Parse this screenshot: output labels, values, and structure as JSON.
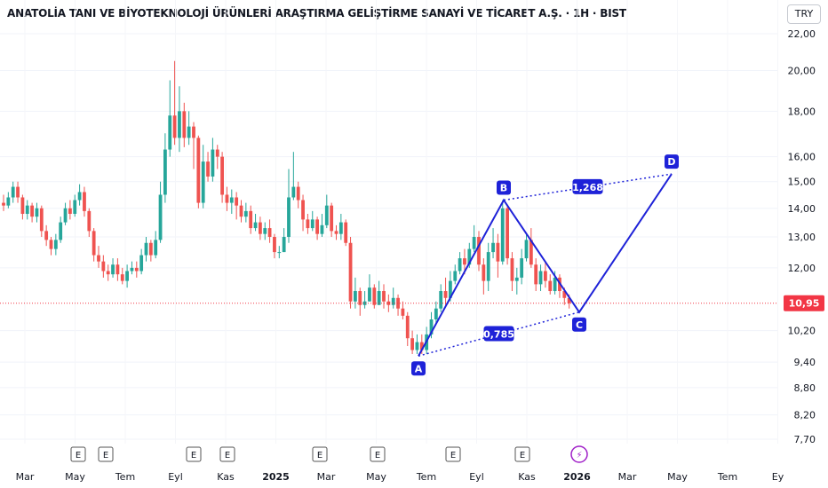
{
  "header": {
    "title": "ANATOLİA TANI VE BİYOTEKNOLOJİ ÜRÜNLERİ ARAŞTIRMA GELİŞTİRME SANAYİ VE TİCARET A.Ş. · 1H · BIST",
    "currency": "TRY"
  },
  "colors": {
    "up": "#26a69a",
    "down": "#ef5350",
    "pattern": "#1e22d8",
    "last_price": "#f23645"
  },
  "chart_data": {
    "type": "candlestick",
    "scale": "log",
    "y_ticks": [
      "22,00",
      "20,00",
      "18,00",
      "16,00",
      "15,00",
      "14,00",
      "13,00",
      "12,00",
      "10,20",
      "9,40",
      "8,80",
      "8,20",
      "7,70"
    ],
    "y_tick_values": [
      22.0,
      20.0,
      18.0,
      16.0,
      15.0,
      14.0,
      13.0,
      12.0,
      10.2,
      9.4,
      8.8,
      8.2,
      7.7
    ],
    "x_ticks": [
      "Mar",
      "May",
      "Tem",
      "Eyl",
      "Kas",
      "2025",
      "Mar",
      "May",
      "Tem",
      "Eyl",
      "Kas",
      "2026",
      "Mar",
      "May",
      "Tem",
      "Ey"
    ],
    "last_price": {
      "value": 10.95,
      "label": "10,95"
    },
    "events": [
      "E",
      "E",
      "E",
      "E",
      "E",
      "E",
      "E",
      "E",
      "⚡"
    ],
    "pattern": {
      "points": [
        {
          "label": "A",
          "value": 9.55
        },
        {
          "label": "B",
          "value": 14.3
        },
        {
          "label": "C",
          "value": 10.7
        },
        {
          "label": "D",
          "value": 15.3
        }
      ],
      "ratios": [
        "0,785",
        "1,268"
      ]
    },
    "candles": [
      [
        14.2,
        14.1,
        14.5,
        13.9
      ],
      [
        14.1,
        14.4,
        14.6,
        14.0
      ],
      [
        14.4,
        14.8,
        15.0,
        14.2
      ],
      [
        14.8,
        14.4,
        15.0,
        14.2
      ],
      [
        14.4,
        13.8,
        14.5,
        13.6
      ],
      [
        13.8,
        14.1,
        14.3,
        13.6
      ],
      [
        14.1,
        13.7,
        14.2,
        13.5
      ],
      [
        13.7,
        14.0,
        14.2,
        13.5
      ],
      [
        14.0,
        13.2,
        14.1,
        13.0
      ],
      [
        13.2,
        12.9,
        13.4,
        12.7
      ],
      [
        12.9,
        12.6,
        13.0,
        12.4
      ],
      [
        12.6,
        12.9,
        13.1,
        12.4
      ],
      [
        12.9,
        13.5,
        13.7,
        12.8
      ],
      [
        13.5,
        14.0,
        14.2,
        13.4
      ],
      [
        14.0,
        13.8,
        14.3,
        13.6
      ],
      [
        13.8,
        14.3,
        14.5,
        13.7
      ],
      [
        14.3,
        14.6,
        14.9,
        14.1
      ],
      [
        14.6,
        13.9,
        14.8,
        13.7
      ],
      [
        13.9,
        13.2,
        14.0,
        13.0
      ],
      [
        13.2,
        12.4,
        13.3,
        12.2
      ],
      [
        12.4,
        12.2,
        12.7,
        12.0
      ],
      [
        12.2,
        11.9,
        12.4,
        11.7
      ],
      [
        11.9,
        11.8,
        12.1,
        11.6
      ],
      [
        11.8,
        12.1,
        12.3,
        11.7
      ],
      [
        12.1,
        11.8,
        12.3,
        11.6
      ],
      [
        11.8,
        11.6,
        12.0,
        11.5
      ],
      [
        11.6,
        11.9,
        12.1,
        11.4
      ],
      [
        11.9,
        12.0,
        12.2,
        11.8
      ],
      [
        12.0,
        11.9,
        12.2,
        11.7
      ],
      [
        11.9,
        12.4,
        12.6,
        11.8
      ],
      [
        12.4,
        12.8,
        13.0,
        12.2
      ],
      [
        12.8,
        12.4,
        12.9,
        12.2
      ],
      [
        12.4,
        12.9,
        13.2,
        12.3
      ],
      [
        12.9,
        14.5,
        15.0,
        12.8
      ],
      [
        14.5,
        16.3,
        17.0,
        14.2
      ],
      [
        16.3,
        17.8,
        19.5,
        16.0
      ],
      [
        17.8,
        16.8,
        20.5,
        16.5
      ],
      [
        16.8,
        18.0,
        19.2,
        16.2
      ],
      [
        18.0,
        16.8,
        18.4,
        16.4
      ],
      [
        16.8,
        17.3,
        18.0,
        16.5
      ],
      [
        17.3,
        16.8,
        17.5,
        15.5
      ],
      [
        16.8,
        14.2,
        16.9,
        14.0
      ],
      [
        14.2,
        15.8,
        16.5,
        14.0
      ],
      [
        15.8,
        15.2,
        16.2,
        15.0
      ],
      [
        15.2,
        16.3,
        16.8,
        15.0
      ],
      [
        16.3,
        16.0,
        16.5,
        15.5
      ],
      [
        16.0,
        14.5,
        16.2,
        14.2
      ],
      [
        14.5,
        14.2,
        14.8,
        13.9
      ],
      [
        14.2,
        14.4,
        14.7,
        13.8
      ],
      [
        14.4,
        14.1,
        14.6,
        13.6
      ],
      [
        14.1,
        13.7,
        14.3,
        13.5
      ],
      [
        13.7,
        13.9,
        14.2,
        13.5
      ],
      [
        13.9,
        13.3,
        14.1,
        13.1
      ],
      [
        13.3,
        13.5,
        13.8,
        13.2
      ],
      [
        13.5,
        13.1,
        13.7,
        12.9
      ],
      [
        13.1,
        13.3,
        13.5,
        12.9
      ],
      [
        13.3,
        13.0,
        13.6,
        12.8
      ],
      [
        13.0,
        12.5,
        13.1,
        12.3
      ],
      [
        12.5,
        12.5,
        12.7,
        12.3
      ],
      [
        12.5,
        13.0,
        13.3,
        12.5
      ],
      [
        13.0,
        14.4,
        15.5,
        12.8
      ],
      [
        14.4,
        14.8,
        16.2,
        14.3
      ],
      [
        14.8,
        14.3,
        15.0,
        14.0
      ],
      [
        14.3,
        13.6,
        14.5,
        13.2
      ],
      [
        13.6,
        13.3,
        13.8,
        13.1
      ],
      [
        13.3,
        13.6,
        13.9,
        13.2
      ],
      [
        13.6,
        13.1,
        13.7,
        12.9
      ],
      [
        13.1,
        13.4,
        13.8,
        13.0
      ],
      [
        13.4,
        14.1,
        14.5,
        13.3
      ],
      [
        14.1,
        13.2,
        14.2,
        13.0
      ],
      [
        13.2,
        13.1,
        13.4,
        12.9
      ],
      [
        13.1,
        13.5,
        13.8,
        12.9
      ],
      [
        13.5,
        12.8,
        13.6,
        12.7
      ],
      [
        12.8,
        11.0,
        13.0,
        10.8
      ],
      [
        11.0,
        11.3,
        11.7,
        10.8
      ],
      [
        11.3,
        10.9,
        11.4,
        10.6
      ],
      [
        10.9,
        11.0,
        11.3,
        10.8
      ],
      [
        11.0,
        11.4,
        11.8,
        11.0
      ],
      [
        11.4,
        10.9,
        11.5,
        10.8
      ],
      [
        10.9,
        11.3,
        11.6,
        10.9
      ],
      [
        11.3,
        11.0,
        11.5,
        10.8
      ],
      [
        11.0,
        10.9,
        11.2,
        10.7
      ],
      [
        10.9,
        11.1,
        11.4,
        10.8
      ],
      [
        11.1,
        10.8,
        11.2,
        10.6
      ],
      [
        10.8,
        10.6,
        11.0,
        10.5
      ],
      [
        10.6,
        10.0,
        10.7,
        9.8
      ],
      [
        10.0,
        9.7,
        10.2,
        9.6
      ],
      [
        9.7,
        9.9,
        10.1,
        9.6
      ],
      [
        9.9,
        9.7,
        10.1,
        9.6
      ],
      [
        9.7,
        10.1,
        10.3,
        9.6
      ],
      [
        10.1,
        10.5,
        10.7,
        10.0
      ],
      [
        10.5,
        10.8,
        11.0,
        10.4
      ],
      [
        10.8,
        11.3,
        11.5,
        10.7
      ],
      [
        11.3,
        11.1,
        11.7,
        10.9
      ],
      [
        11.1,
        11.6,
        11.9,
        11.0
      ],
      [
        11.6,
        11.9,
        12.1,
        11.5
      ],
      [
        11.9,
        12.3,
        12.5,
        11.8
      ],
      [
        12.3,
        12.1,
        12.6,
        11.8
      ],
      [
        12.1,
        12.6,
        12.8,
        12.0
      ],
      [
        12.6,
        13.0,
        13.4,
        12.5
      ],
      [
        13.0,
        12.1,
        13.2,
        11.9
      ],
      [
        12.1,
        11.6,
        12.3,
        11.2
      ],
      [
        11.6,
        12.5,
        12.8,
        11.3
      ],
      [
        12.5,
        12.8,
        13.3,
        12.3
      ],
      [
        12.8,
        12.2,
        13.1,
        11.7
      ],
      [
        12.2,
        14.0,
        14.3,
        12.1
      ],
      [
        14.0,
        12.3,
        14.1,
        12.1
      ],
      [
        12.3,
        11.6,
        12.5,
        11.3
      ],
      [
        11.6,
        11.7,
        12.0,
        11.2
      ],
      [
        11.7,
        12.3,
        12.6,
        11.5
      ],
      [
        12.3,
        12.9,
        13.1,
        12.2
      ],
      [
        12.9,
        12.1,
        13.3,
        12.0
      ],
      [
        12.1,
        11.5,
        12.3,
        11.3
      ],
      [
        11.5,
        11.9,
        12.1,
        11.3
      ],
      [
        11.9,
        11.6,
        12.2,
        11.4
      ],
      [
        11.6,
        11.3,
        11.8,
        11.2
      ],
      [
        11.3,
        11.7,
        11.9,
        11.2
      ],
      [
        11.7,
        11.3,
        11.8,
        11.1
      ],
      [
        11.3,
        11.1,
        11.4,
        10.9
      ],
      [
        11.1,
        10.95,
        11.2,
        10.8
      ]
    ]
  }
}
